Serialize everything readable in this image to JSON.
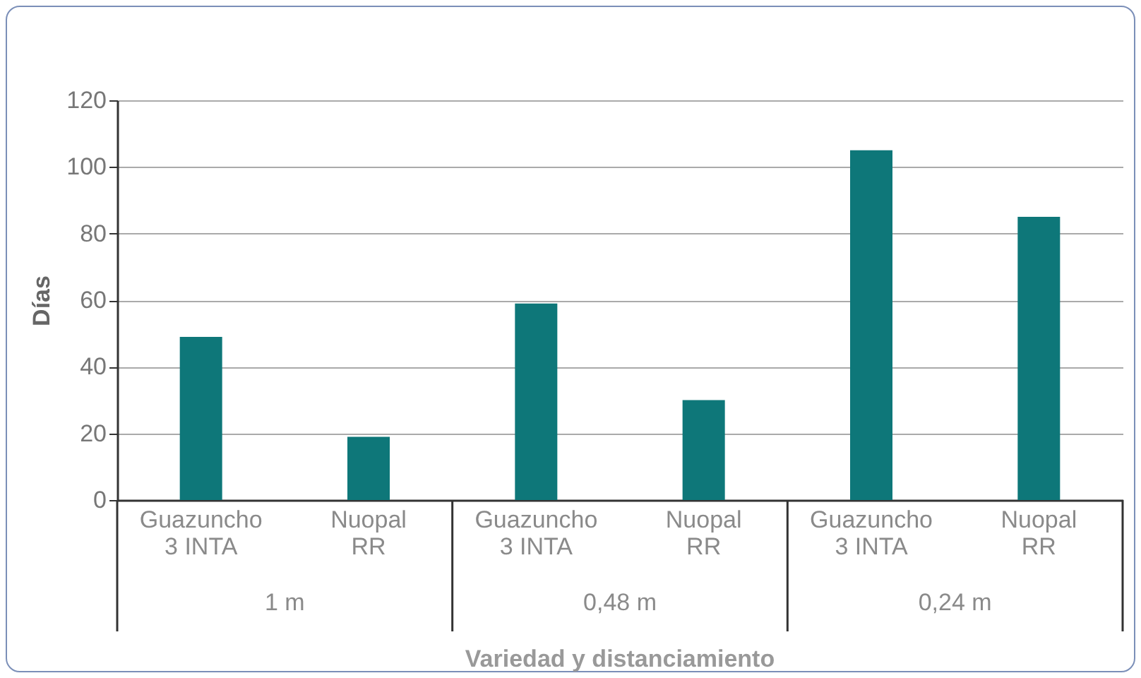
{
  "chart_data": {
    "type": "bar",
    "xlabel": "Variedad y distanciamiento",
    "ylabel": "Días",
    "categories": [
      "Guazuncho 3 INTA",
      "Nuopal RR",
      "Guazuncho 3 INTA",
      "Nuopal RR",
      "Guazuncho 3 INTA",
      "Nuopal RR"
    ],
    "values": [
      49,
      19,
      59,
      30,
      105,
      85
    ],
    "color": "#0e7779",
    "ylim": [
      0,
      120
    ],
    "yticks": [
      0,
      20,
      40,
      60,
      80,
      100,
      120
    ],
    "grid": "y",
    "annotations": [
      "1 m",
      "0,48 m",
      "0,24 m"
    ]
  }
}
